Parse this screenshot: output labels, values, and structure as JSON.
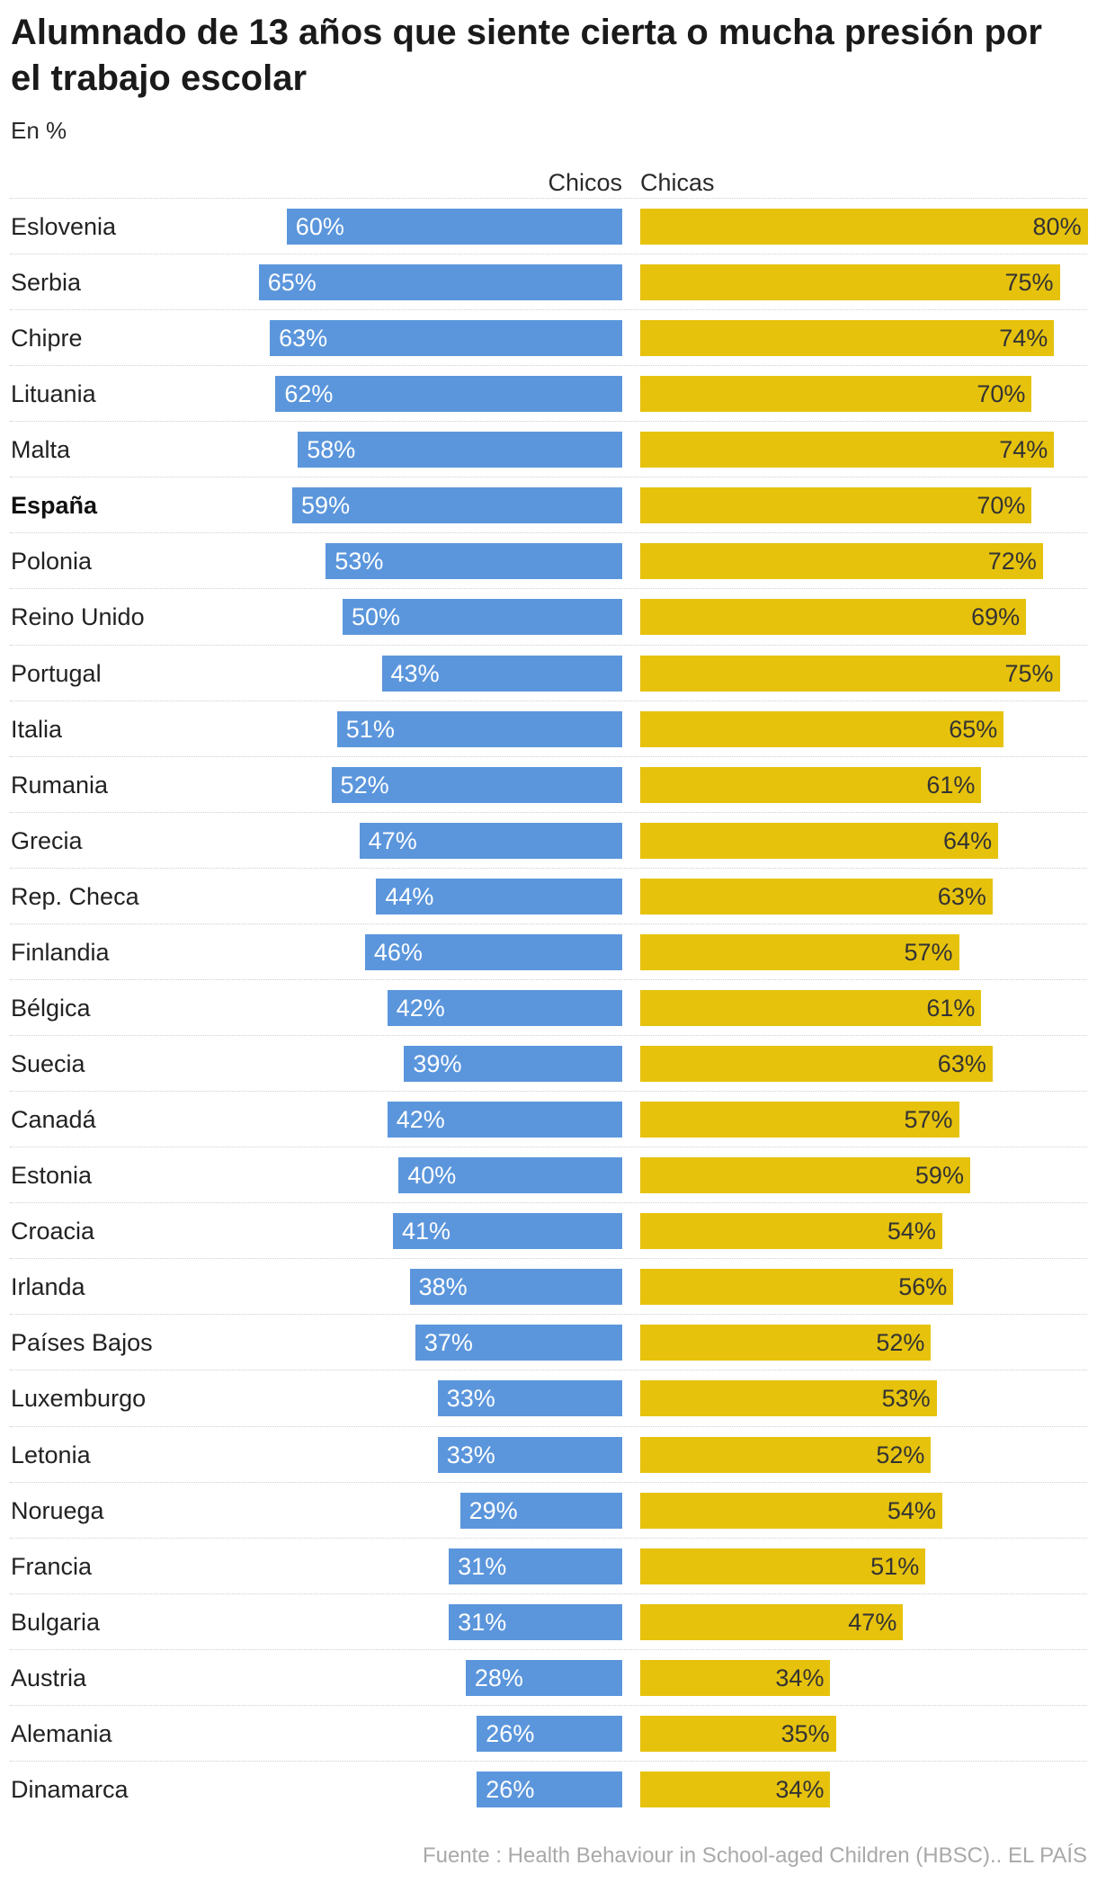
{
  "colors": {
    "chicos": "#5b96dc",
    "chicas": "#e6c20d"
  },
  "source": "Fuente : Health Behaviour in School-aged Children (HBSC).. EL PAÍS",
  "chart_data": {
    "type": "bar",
    "orientation": "horizontal",
    "layout": "diverging",
    "title": "Alumnado de 13 años que siente cierta o mucha presión por el trabajo escolar",
    "subtitle": "En %",
    "value_suffix": "%",
    "highlight_category": "España",
    "grid": false,
    "legend": "top-center",
    "categories": [
      "Eslovenia",
      "Serbia",
      "Chipre",
      "Lituania",
      "Malta",
      "España",
      "Polonia",
      "Reino Unido",
      "Portugal",
      "Italia",
      "Rumania",
      "Grecia",
      "Rep. Checa",
      "Finlandia",
      "Bélgica",
      "Suecia",
      "Canadá",
      "Estonia",
      "Croacia",
      "Irlanda",
      "Países Bajos",
      "Luxemburgo",
      "Letonia",
      "Noruega",
      "Francia",
      "Bulgaria",
      "Austria",
      "Alemania",
      "Dinamarca"
    ],
    "series": [
      {
        "name": "Chicos",
        "values": [
          60,
          65,
          63,
          62,
          58,
          59,
          53,
          50,
          43,
          51,
          52,
          47,
          44,
          46,
          42,
          39,
          42,
          40,
          41,
          38,
          37,
          33,
          33,
          29,
          31,
          31,
          28,
          26,
          26
        ]
      },
      {
        "name": "Chicas",
        "values": [
          80,
          75,
          74,
          70,
          74,
          70,
          72,
          69,
          75,
          65,
          61,
          64,
          63,
          57,
          61,
          63,
          57,
          59,
          54,
          56,
          52,
          53,
          52,
          54,
          51,
          47,
          34,
          35,
          34
        ]
      }
    ]
  }
}
